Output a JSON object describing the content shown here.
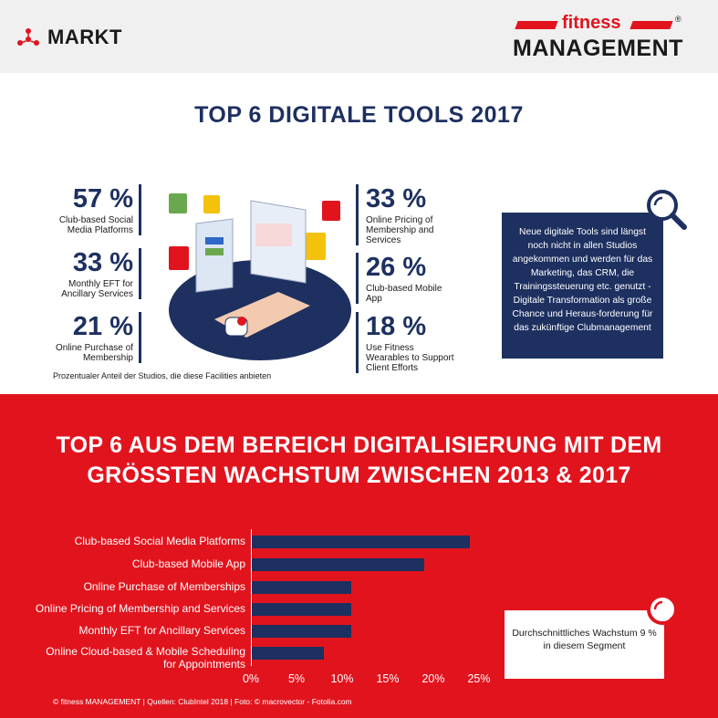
{
  "header": {
    "section": "MARKT",
    "logo_fitness": "fitness",
    "logo_reg": "®",
    "logo_management": "MANAGEMENT"
  },
  "top6": {
    "title": "TOP 6 DIGITALE TOOLS 2017",
    "stats_left": [
      {
        "pct": "57 %",
        "label": "Club-based Social Media Platforms"
      },
      {
        "pct": "33 %",
        "label": "Monthly EFT for Ancillary Services"
      },
      {
        "pct": "21 %",
        "label": "Online Purchase of Membership"
      }
    ],
    "stats_right": [
      {
        "pct": "33 %",
        "label": "Online Pricing of Membership and Services"
      },
      {
        "pct": "26 %",
        "label": "Club-based Mobile App"
      },
      {
        "pct": "18 %",
        "label": "Use Fitness Wearables to Support Client Efforts"
      }
    ],
    "footnote": "Prozentualer Anteil der Studios, die diese Facilities anbieten",
    "infobox": "Neue digitale Tools sind längst noch nicht in allen Studios angekommen und werden für das Marketing, das CRM, die Trainingssteuerung etc. genutzt -  Digitale Transformation als große Chance und Heraus-forderung für das zukünftige Clubmanagement"
  },
  "growth": {
    "title_line1": "TOP 6 AUS DEM BEREICH DIGITALISIERUNG MIT DEM",
    "title_line2": "GRÖSSTEN WACHSTUM ZWISCHEN 2013 & 2017",
    "infobox": "Durchschnittliches Wachstum 9 % in diesem Segment"
  },
  "chart_data": {
    "type": "bar",
    "orientation": "horizontal",
    "categories": [
      "Club-based Social Media Platforms",
      "Club-based Mobile App",
      "Online Purchase of Memberships",
      "Online Pricing of Membership and Services",
      "Monthly EFT for Ancillary Services",
      "Online Cloud-based & Mobile Scheduling for Appointments"
    ],
    "values": [
      24,
      19,
      11,
      11,
      11,
      8
    ],
    "xlim": [
      0,
      25
    ],
    "ticks": [
      "0%",
      "5%",
      "10%",
      "15%",
      "20%",
      "25%"
    ],
    "bar_color": "#1d3060"
  },
  "footer": {
    "credits": "© fitness MANAGEMENT   |   Quellen: ClubIntel 2018   |   Foto: © macrovector - Fotolia.com"
  },
  "colors": {
    "red": "#e1141e",
    "navy": "#1d3060"
  }
}
